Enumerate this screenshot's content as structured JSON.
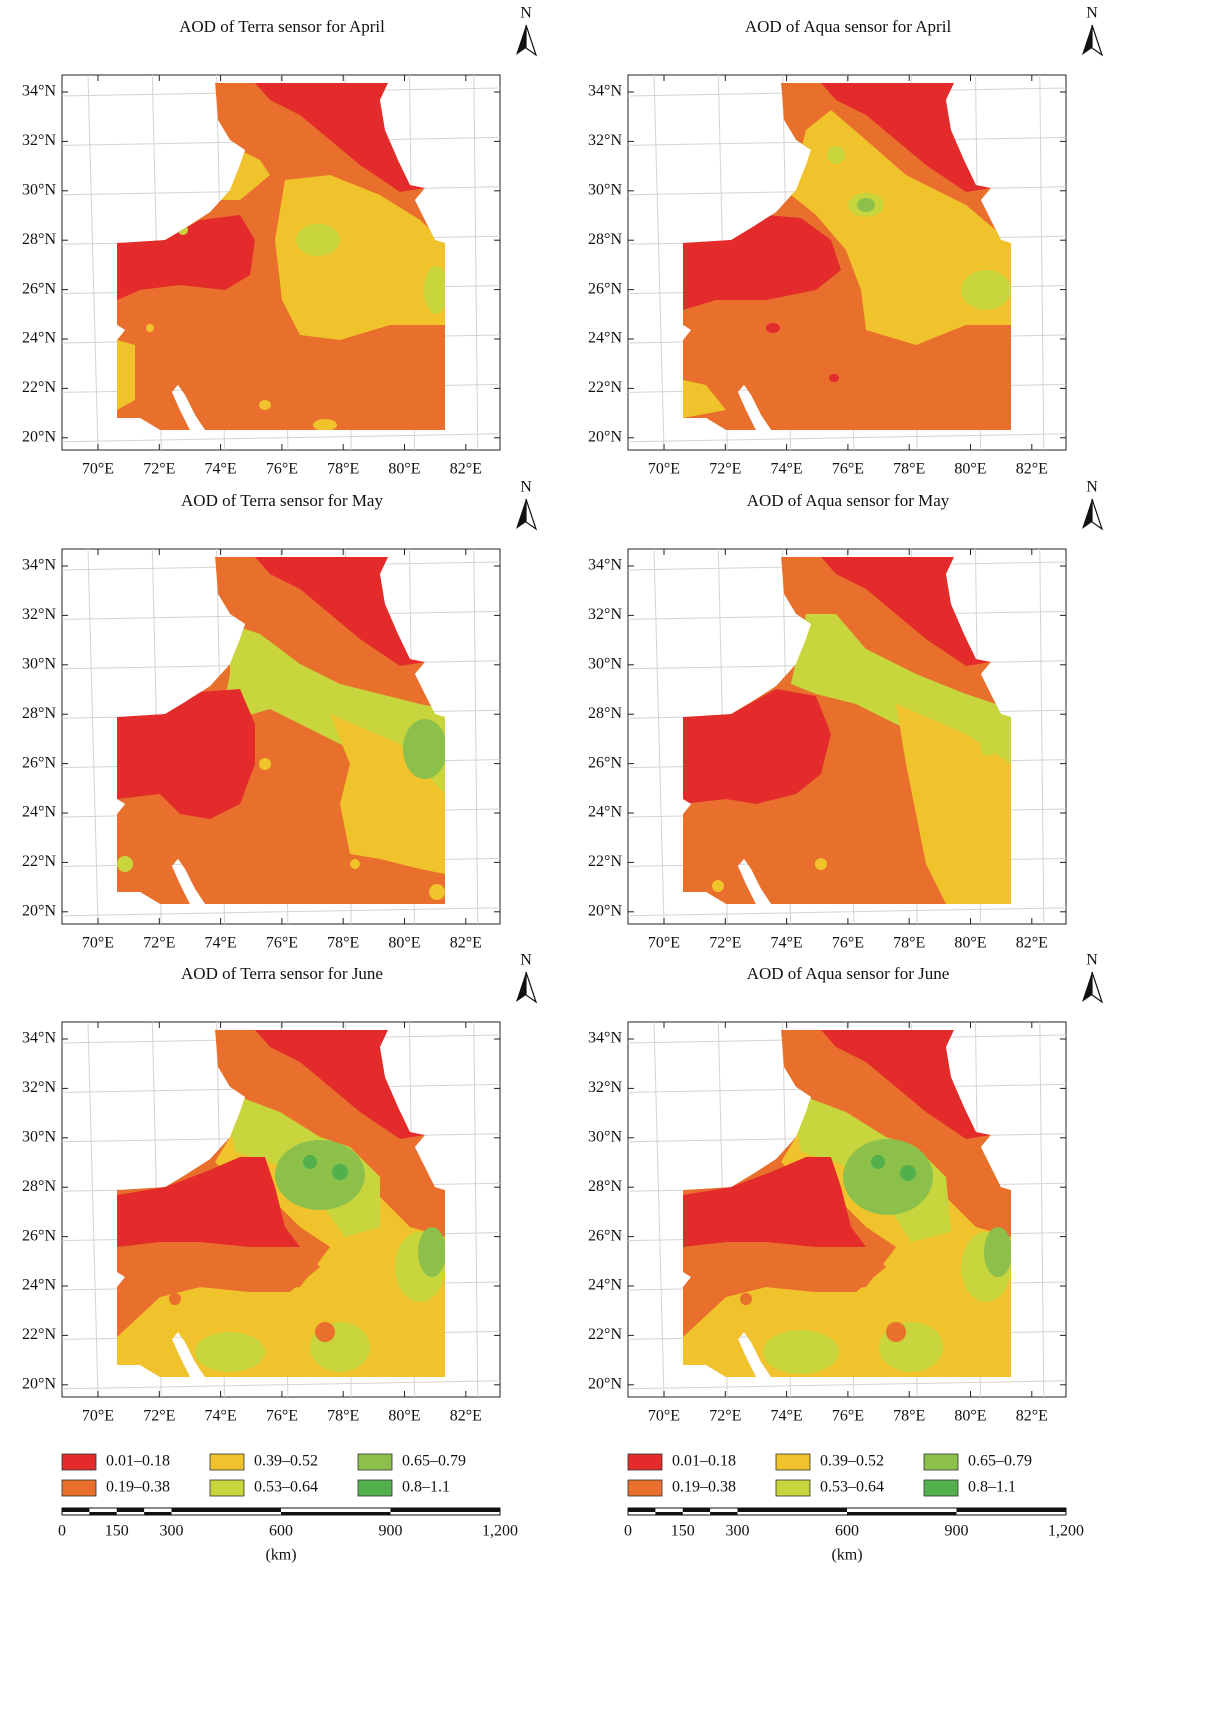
{
  "panels": [
    {
      "title": "AOD of Terra sensor for April"
    },
    {
      "title": "AOD of Aqua sensor for April"
    },
    {
      "title": "AOD of Terra sensor for May"
    },
    {
      "title": "AOD of Aqua sensor for May"
    },
    {
      "title": "AOD of Terra sensor for June"
    },
    {
      "title": "AOD of Aqua sensor for June"
    }
  ],
  "lat_labels": [
    "34°N",
    "32°N",
    "30°N",
    "28°N",
    "26°N",
    "24°N",
    "22°N",
    "20°N"
  ],
  "lon_labels": [
    "70°E",
    "72°E",
    "74°E",
    "76°E",
    "78°E",
    "80°E",
    "82°E"
  ],
  "north": "N",
  "legend": {
    "labels": [
      "0.01–0.18",
      "0.19–0.38",
      "0.39–0.52",
      "0.53–0.64",
      "0.65–0.79",
      "0.8–1.1"
    ],
    "colors": [
      "#e32b2b",
      "#e8702c",
      "#f0c22b",
      "#c8d53c",
      "#8cc04a",
      "#52b04c"
    ]
  },
  "scale_bar": {
    "labels": [
      "0",
      "150",
      "300",
      "600",
      "900",
      "1,200"
    ],
    "unit": "(km)"
  }
}
